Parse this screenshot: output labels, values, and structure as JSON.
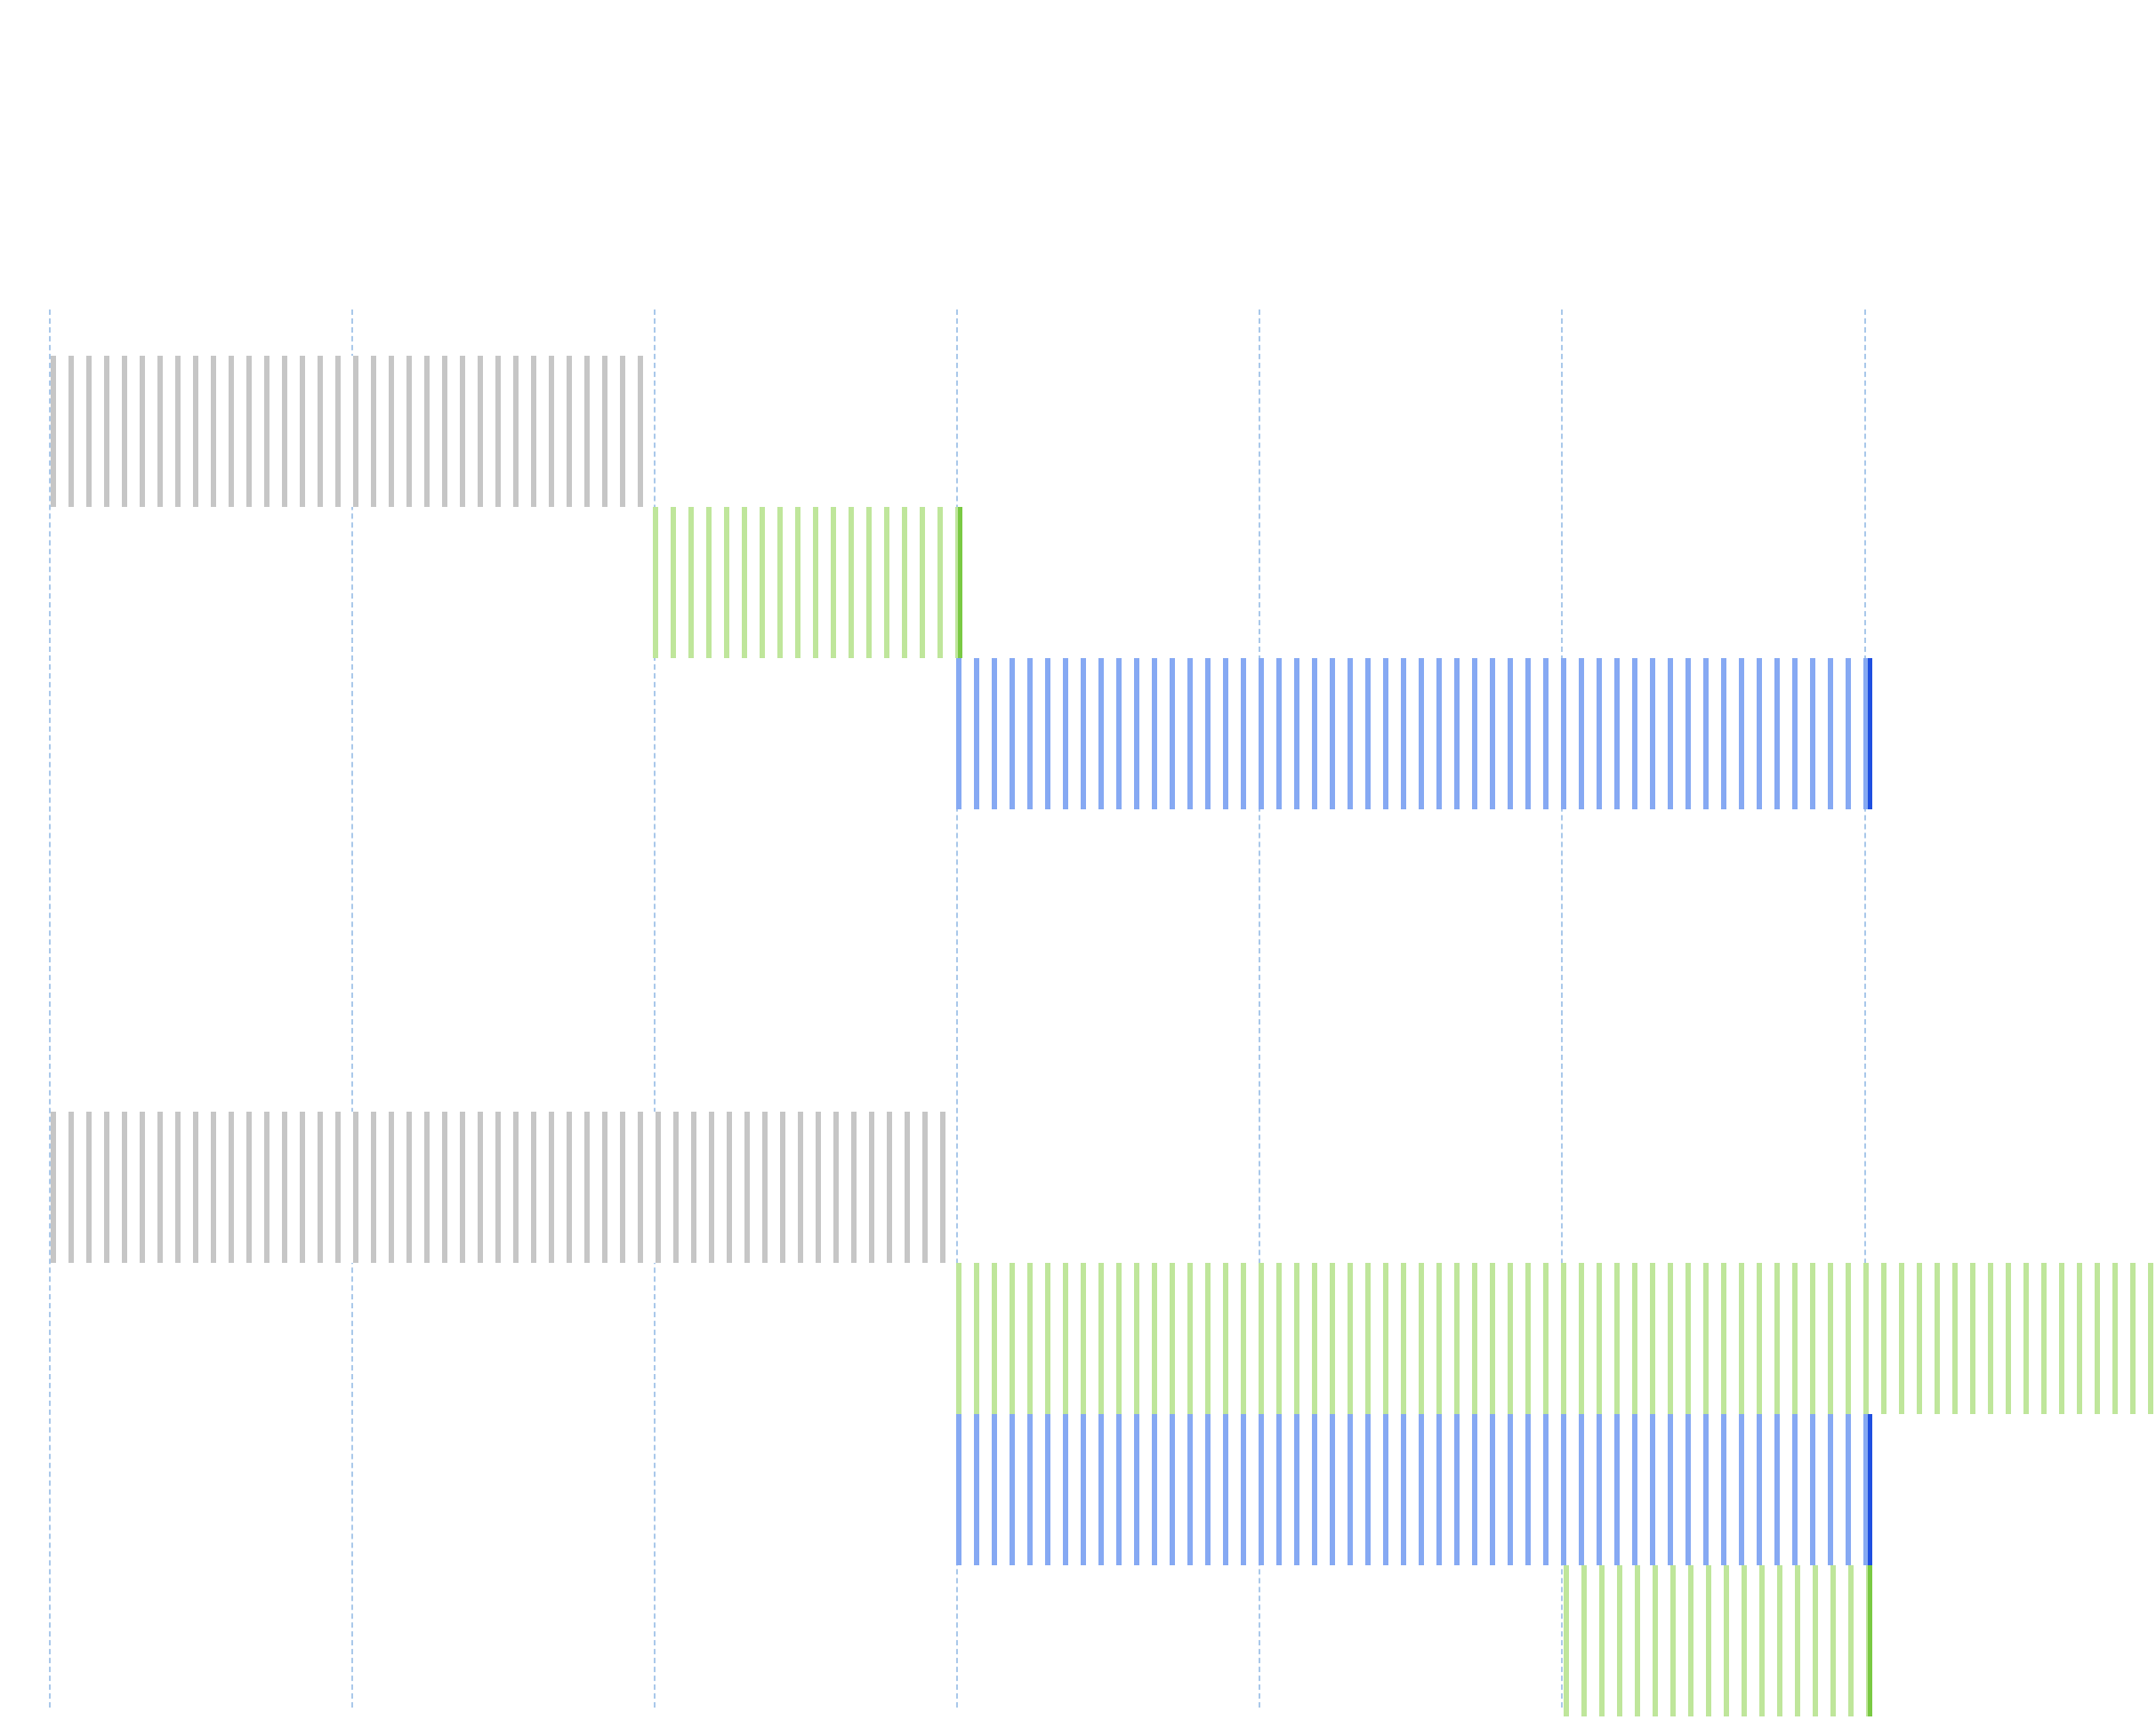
{
  "colors": {
    "gridline": "#a9c8ea",
    "gray_bar": "#c6c6c6",
    "green_bar": "#bfe69b",
    "green_edge": "#7ac943",
    "blue_bar": "#86a9f3",
    "blue_edge": "#1f4fe0",
    "label_text": "#ffffff"
  },
  "timeline": {
    "gridline_count": 7,
    "tasks": [
      {
        "label": "",
        "color": "gray"
      },
      {
        "label": "",
        "color": "green"
      },
      {
        "label": "",
        "color": "blue"
      },
      {
        "label": "",
        "color": "gray"
      },
      {
        "label": "",
        "color": "green"
      },
      {
        "label": "",
        "color": "blue"
      },
      {
        "label": "",
        "color": "green"
      }
    ]
  }
}
